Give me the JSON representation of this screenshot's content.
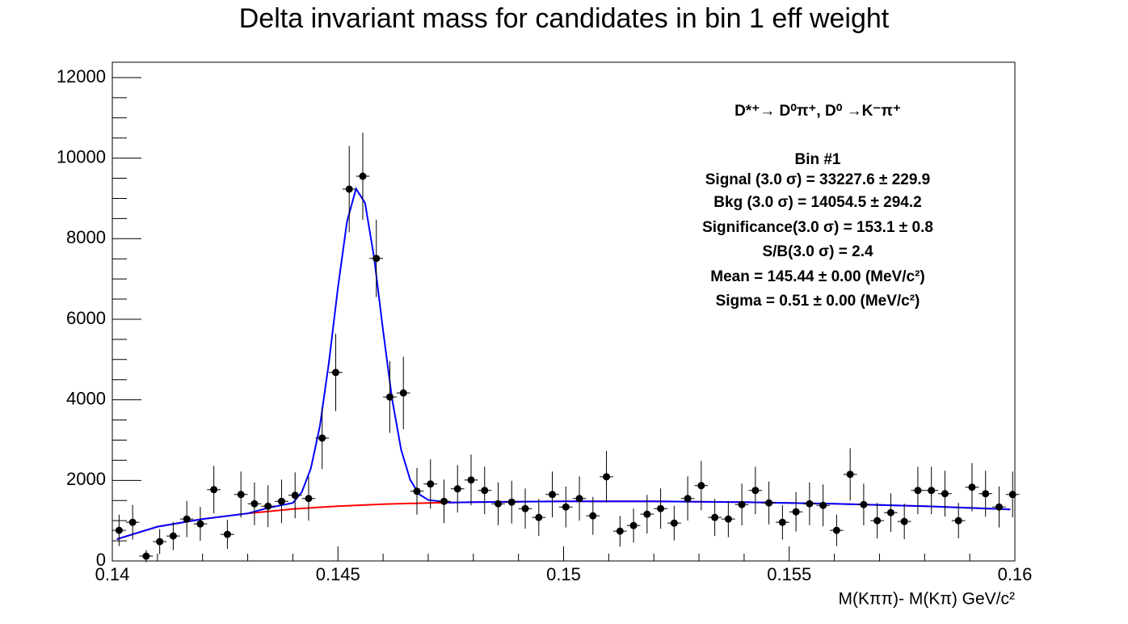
{
  "chart_data": {
    "type": "errorbar",
    "title": "Delta invariant mass for candidates in bin 1 eff weight",
    "xlabel": "M(Kππ)- M(Kπ) GeV/c²",
    "xlim": [
      0.14,
      0.16
    ],
    "ylim": [
      0,
      12380
    ],
    "xticks": [
      0.14,
      0.145,
      0.15,
      0.155,
      0.16
    ],
    "yticks": [
      0,
      2000,
      4000,
      6000,
      8000,
      10000,
      12000
    ],
    "xticks_minor": [
      0.141,
      0.142,
      0.143,
      0.144,
      0.146,
      0.147,
      0.148,
      0.149,
      0.151,
      0.152,
      0.153,
      0.154,
      0.156,
      0.157,
      0.158,
      0.159
    ],
    "yticks_minor": [
      500,
      1000,
      1500,
      2500,
      3000,
      3500,
      4500,
      5000,
      5500,
      6500,
      7000,
      7500,
      8500,
      9000,
      9500,
      10500,
      11000,
      11500
    ],
    "grid": false,
    "series": [
      {
        "color": "#000000",
        "xerr": 0.00015,
        "x": [
          0.14015,
          0.14045,
          0.14075,
          0.14105,
          0.14135,
          0.14165,
          0.14195,
          0.14225,
          0.14255,
          0.14285,
          0.14315,
          0.14345,
          0.14375,
          0.14405,
          0.14435,
          0.14465,
          0.14495,
          0.14525,
          0.14555,
          0.14585,
          0.14615,
          0.14645,
          0.14675,
          0.14705,
          0.14735,
          0.14765,
          0.14795,
          0.14825,
          0.14855,
          0.14885,
          0.14915,
          0.14945,
          0.14975,
          0.15005,
          0.15035,
          0.15065,
          0.15095,
          0.15125,
          0.15155,
          0.15185,
          0.15215,
          0.15245,
          0.15275,
          0.15305,
          0.15335,
          0.15365,
          0.15395,
          0.15425,
          0.15455,
          0.15485,
          0.15515,
          0.15545,
          0.15575,
          0.15605,
          0.15635,
          0.15665,
          0.15695,
          0.15725,
          0.15755,
          0.15785,
          0.15815,
          0.15845,
          0.15875,
          0.15905,
          0.15935,
          0.15965,
          0.15995
        ],
        "values": [
          760,
          960,
          120,
          480,
          620,
          1040,
          920,
          1770,
          660,
          1650,
          1420,
          1360,
          1480,
          1630,
          1550,
          3050,
          4680,
          9230,
          9550,
          7510,
          4070,
          4170,
          1730,
          1910,
          1480,
          1790,
          2010,
          1750,
          1420,
          1460,
          1300,
          1080,
          1650,
          1340,
          1550,
          1120,
          2090,
          740,
          880,
          1160,
          1300,
          940,
          1550,
          1870,
          1080,
          1040,
          1400,
          1750,
          1440,
          960,
          1220,
          1420,
          1380,
          760,
          2150,
          1400,
          1000,
          1200,
          980,
          1750,
          1750,
          1670,
          1000,
          1830,
          1670,
          1340,
          1650
        ],
        "errors": [
          390,
          430,
          150,
          310,
          350,
          450,
          420,
          590,
          360,
          570,
          530,
          520,
          540,
          570,
          550,
          770,
          960,
          1070,
          1080,
          960,
          890,
          900,
          580,
          610,
          540,
          590,
          630,
          590,
          530,
          530,
          500,
          460,
          570,
          510,
          550,
          470,
          640,
          380,
          420,
          480,
          500,
          430,
          550,
          610,
          460,
          450,
          520,
          590,
          530,
          430,
          490,
          530,
          520,
          390,
          650,
          520,
          440,
          480,
          440,
          590,
          590,
          570,
          440,
          600,
          570,
          510,
          570
        ]
      }
    ],
    "fits": [
      {
        "color": "#ff0000",
        "x": [
          0.1401,
          0.141,
          0.142,
          0.143,
          0.144,
          0.145,
          0.146,
          0.147,
          0.148,
          0.15,
          0.152,
          0.154,
          0.156,
          0.158,
          0.1599
        ],
        "values": [
          540,
          850,
          1040,
          1180,
          1290,
          1360,
          1410,
          1440,
          1460,
          1480,
          1480,
          1460,
          1420,
          1360,
          1280
        ]
      },
      {
        "color": "#0000ff",
        "x": [
          0.1401,
          0.141,
          0.142,
          0.143,
          0.1435,
          0.144,
          0.1442,
          0.1444,
          0.1446,
          0.1448,
          0.145,
          0.1452,
          0.1454,
          0.1456,
          0.1458,
          0.146,
          0.1462,
          0.1464,
          0.1466,
          0.1468,
          0.147,
          0.1475,
          0.148,
          0.15,
          0.152,
          0.154,
          0.156,
          0.158,
          0.1599
        ],
        "values": [
          540,
          850,
          1040,
          1180,
          1330,
          1440,
          1710,
          2300,
          3350,
          4930,
          6790,
          8420,
          9240,
          8890,
          7540,
          5720,
          4015,
          2760,
          2015,
          1655,
          1513,
          1450,
          1460,
          1480,
          1480,
          1460,
          1420,
          1360,
          1280
        ]
      }
    ],
    "annotations": [
      "D*⁺→ D⁰π⁺, D⁰ →K⁻π⁺",
      "Bin #1",
      "Signal (3.0 σ) =  33227.6 ± 229.9",
      "Bkg (3.0 σ) =  14054.5 ± 294.2",
      "Significance(3.0 σ) =  153.1 ± 0.8",
      "S/B(3.0 σ) =  2.4",
      "Mean = 145.44 ± 0.00 (MeV/c²)",
      "Sigma = 0.51 ± 0.00 (MeV/c²)"
    ]
  }
}
